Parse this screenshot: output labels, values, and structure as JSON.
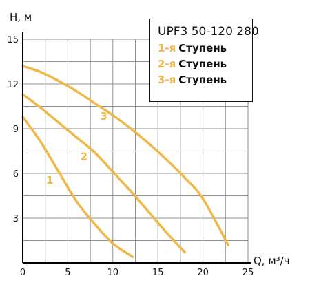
{
  "chart_data": {
    "type": "line",
    "title": "",
    "xlabel": "Q, м³/ч",
    "ylabel": "H, м",
    "xlim": [
      0,
      25
    ],
    "ylim": [
      0,
      15
    ],
    "x_ticks": [
      "0",
      "5",
      "10",
      "15",
      "20",
      "25"
    ],
    "y_ticks": [
      "3",
      "6",
      "9",
      "12",
      "15"
    ],
    "x_tick_values": [
      0,
      5,
      10,
      15,
      20,
      25
    ],
    "y_tick_values": [
      3,
      6,
      9,
      12,
      15
    ],
    "grid": true,
    "line_color": "#f0b849",
    "legend_position": "top-right",
    "legend": {
      "title": "UPF3 50-120 280",
      "items": [
        {
          "number": "1-я",
          "label": "Ступень"
        },
        {
          "number": "2-я",
          "label": "Ступень"
        },
        {
          "number": "3-я",
          "label": "Ступень"
        }
      ]
    },
    "series": [
      {
        "label": "1",
        "label_at": [
          3,
          5.3
        ],
        "x": [
          0,
          2,
          4,
          6,
          8,
          10,
          12.2
        ],
        "y": [
          9.8,
          8.1,
          6.1,
          4.1,
          2.6,
          1.3,
          0.4
        ]
      },
      {
        "label": "2",
        "label_at": [
          6.8,
          6.9
        ],
        "x": [
          0,
          2,
          4,
          6,
          8,
          10,
          12,
          14,
          16,
          18
        ],
        "y": [
          11.3,
          10.4,
          9.4,
          8.4,
          7.4,
          6.1,
          4.8,
          3.4,
          2.0,
          0.7
        ]
      },
      {
        "label": "3",
        "label_at": [
          9,
          9.6
        ],
        "x": [
          0,
          2,
          4,
          6,
          8,
          10,
          12,
          14,
          16,
          18,
          20,
          22.8
        ],
        "y": [
          13.2,
          12.8,
          12.2,
          11.5,
          10.7,
          9.9,
          9.0,
          8.0,
          6.9,
          5.7,
          4.3,
          1.2
        ]
      }
    ]
  }
}
